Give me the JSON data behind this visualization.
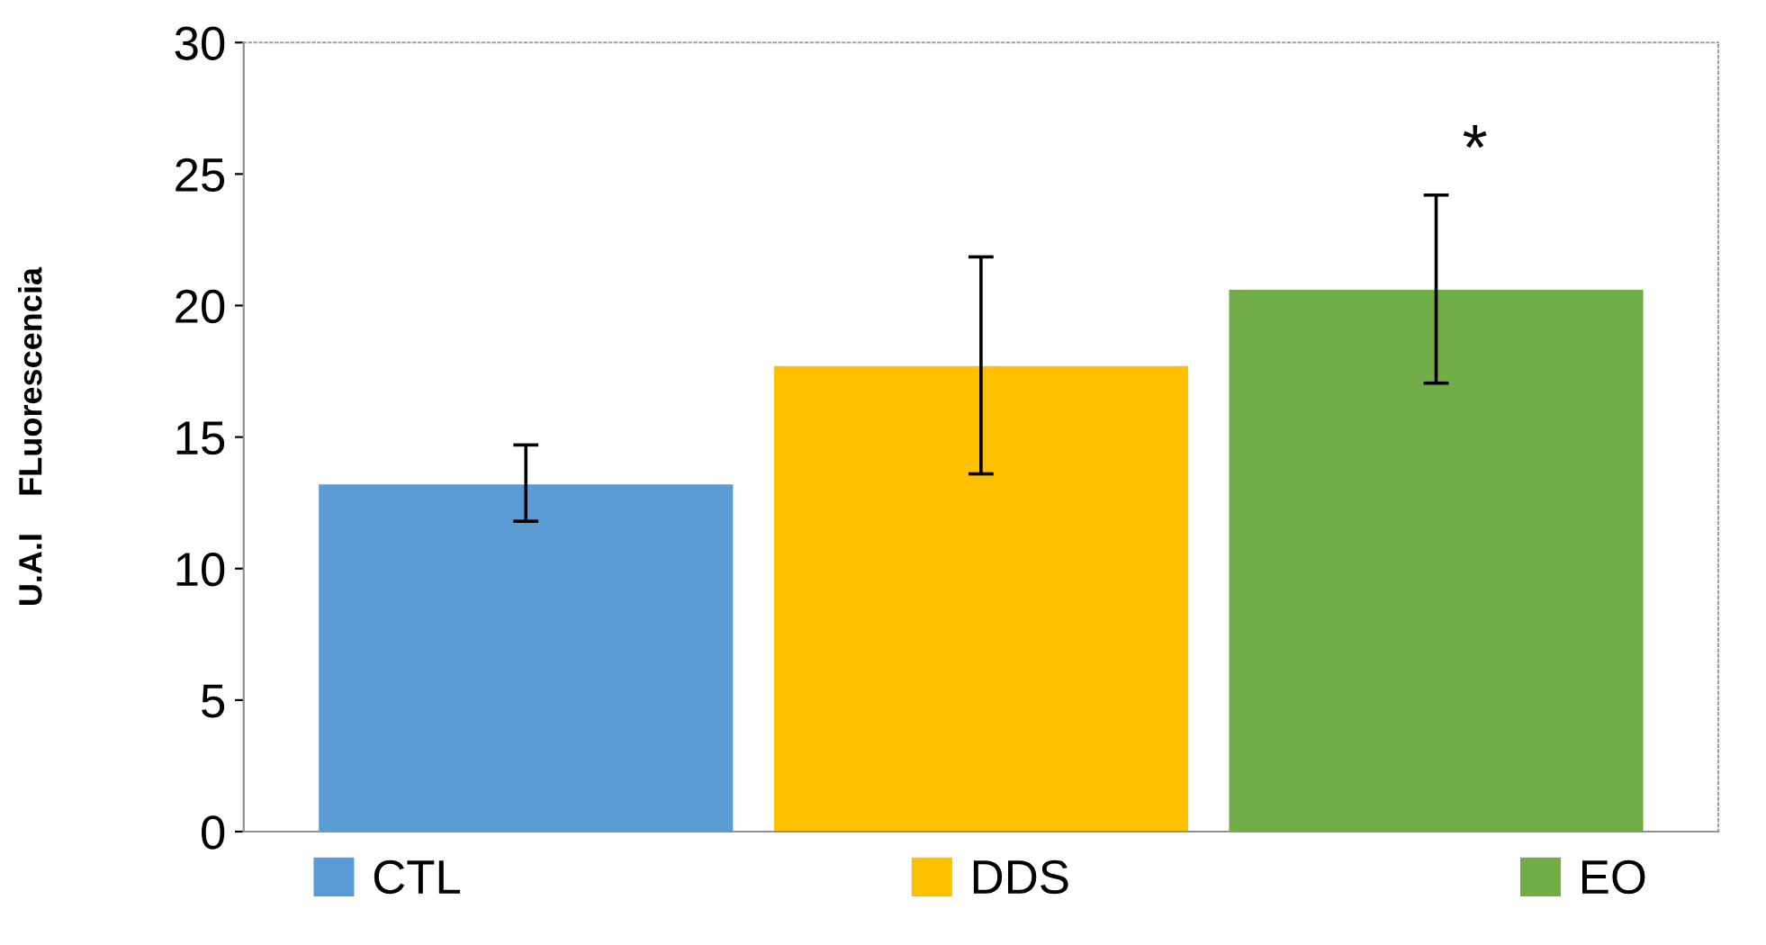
{
  "chart_data": {
    "type": "bar",
    "ylabel": "U.A.I    FLuorescencia",
    "categories": [
      null,
      null,
      null
    ],
    "series": [
      {
        "name": "CTL",
        "color": "#5b9bd5",
        "values": [
          13.2,
          null,
          null
        ],
        "errors": [
          [
            11.8,
            14.7
          ],
          null,
          null
        ]
      },
      {
        "name": "DDS",
        "color": "#ffc000",
        "values": [
          null,
          17.7,
          null
        ],
        "errors": [
          null,
          [
            13.6,
            21.85
          ],
          null
        ]
      },
      {
        "name": "EO",
        "color": "#70ad47",
        "values": [
          null,
          null,
          20.6
        ],
        "errors": [
          null,
          null,
          [
            17.05,
            24.2
          ]
        ]
      }
    ],
    "annotations": [
      "*"
    ],
    "ylim": [
      0,
      30
    ],
    "yticks": [
      0,
      5,
      10,
      15,
      20,
      25,
      30
    ],
    "tick_labels": "y",
    "grid": false,
    "legend": "bottom"
  }
}
